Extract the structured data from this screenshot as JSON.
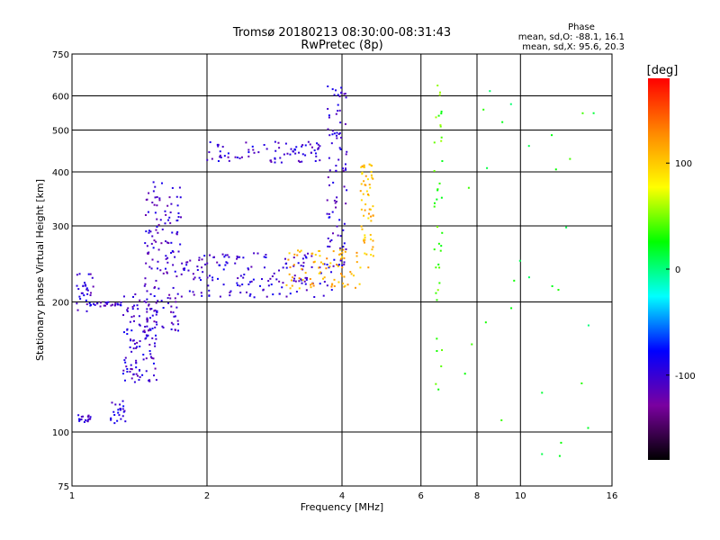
{
  "chart_data": {
    "type": "scatter",
    "title": "Tromsø 20180213 08:30:00-08:31:43",
    "subtitle": "RwPretec (8p)",
    "xlabel": "Frequency [MHz]",
    "ylabel": "Stationary phase Virtual Height [km]",
    "x_scale": "log",
    "y_scale": "log",
    "xlim": [
      1,
      16
    ],
    "ylim": [
      75,
      750
    ],
    "x_ticks": [
      {
        "v": 1,
        "label": "1"
      },
      {
        "v": 2,
        "label": "2"
      },
      {
        "v": 4,
        "label": "4"
      },
      {
        "v": 6,
        "label": "6"
      },
      {
        "v": 8,
        "label": "8"
      },
      {
        "v": 10,
        "label": "10"
      },
      {
        "v": 16,
        "label": "16"
      }
    ],
    "y_ticks": [
      {
        "v": 75,
        "label": "75"
      },
      {
        "v": 100,
        "label": "100"
      },
      {
        "v": 200,
        "label": "200"
      },
      {
        "v": 300,
        "label": "300"
      },
      {
        "v": 400,
        "label": "400"
      },
      {
        "v": 500,
        "label": "500"
      },
      {
        "v": 600,
        "label": "600"
      },
      {
        "v": 750,
        "label": "750"
      }
    ],
    "v_gridlines": [
      2,
      4,
      6,
      8,
      10
    ],
    "h_gridlines": [
      100,
      200,
      300,
      400,
      500,
      600
    ],
    "stats": {
      "title": "Phase",
      "line1": "mean, sd,O: -88.1, 16.1",
      "line2": "mean, sd,X:  95.6, 20.3"
    },
    "colorbar": {
      "label": "[deg]",
      "range": [
        -180,
        180
      ],
      "ticks": [
        {
          "v": 100,
          "label": "100"
        },
        {
          "v": 0,
          "label": "0"
        },
        {
          "v": -100,
          "label": "-100"
        }
      ],
      "stops": [
        "#000000",
        "#7a00a0",
        "#0000ff",
        "#00ffff",
        "#00ff00",
        "#ffff00",
        "#ff8800",
        "#ff0000"
      ]
    },
    "series": [
      {
        "trace": "O low trace",
        "x0": 1.02,
        "x1": 1.1,
        "y0": 105,
        "y1": 110,
        "phase": -100,
        "n": 20
      },
      {
        "trace": "O low cluster",
        "x0": 1.22,
        "x1": 1.32,
        "y0": 103,
        "y1": 118,
        "phase": -95,
        "n": 24
      },
      {
        "trace": "O spread column",
        "x0": 1.3,
        "x1": 1.55,
        "y0": 130,
        "y1": 210,
        "phase": -100,
        "n": 120
      },
      {
        "trace": "O spread column 2",
        "x0": 1.45,
        "x1": 1.75,
        "y0": 170,
        "y1": 380,
        "phase": -105,
        "n": 140
      },
      {
        "trace": "O early trace",
        "x0": 1.02,
        "x1": 1.12,
        "y0": 190,
        "y1": 235,
        "phase": -100,
        "n": 30
      },
      {
        "trace": "O lower layer",
        "x0": 1.08,
        "x1": 1.3,
        "y0": 195,
        "y1": 200,
        "phase": -100,
        "n": 28
      },
      {
        "trace": "O E-F trace",
        "x0": 1.75,
        "x1": 3.8,
        "y0": 205,
        "y1": 260,
        "phase": -100,
        "n": 160
      },
      {
        "trace": "O F2 cusp",
        "x0": 3.7,
        "x1": 4.1,
        "y0": 240,
        "y1": 640,
        "phase": -100,
        "n": 90
      },
      {
        "trace": "O upper trace",
        "x0": 2.0,
        "x1": 3.8,
        "y0": 420,
        "y1": 470,
        "phase": -100,
        "n": 80
      },
      {
        "trace": "X trace",
        "x0": 3.0,
        "x1": 4.4,
        "y0": 215,
        "y1": 265,
        "phase": 110,
        "n": 80
      },
      {
        "trace": "X cusp",
        "x0": 4.4,
        "x1": 4.7,
        "y0": 240,
        "y1": 420,
        "phase": 105,
        "n": 60
      },
      {
        "trace": "Noise 6.5 MHz",
        "x0": 6.4,
        "x1": 6.7,
        "y0": 110,
        "y1": 660,
        "phase": 40,
        "n": 40
      },
      {
        "trace": "Noise high f",
        "x0": 7.5,
        "x1": 15.0,
        "y0": 85,
        "y1": 660,
        "phase": 20,
        "n": 30
      }
    ]
  }
}
